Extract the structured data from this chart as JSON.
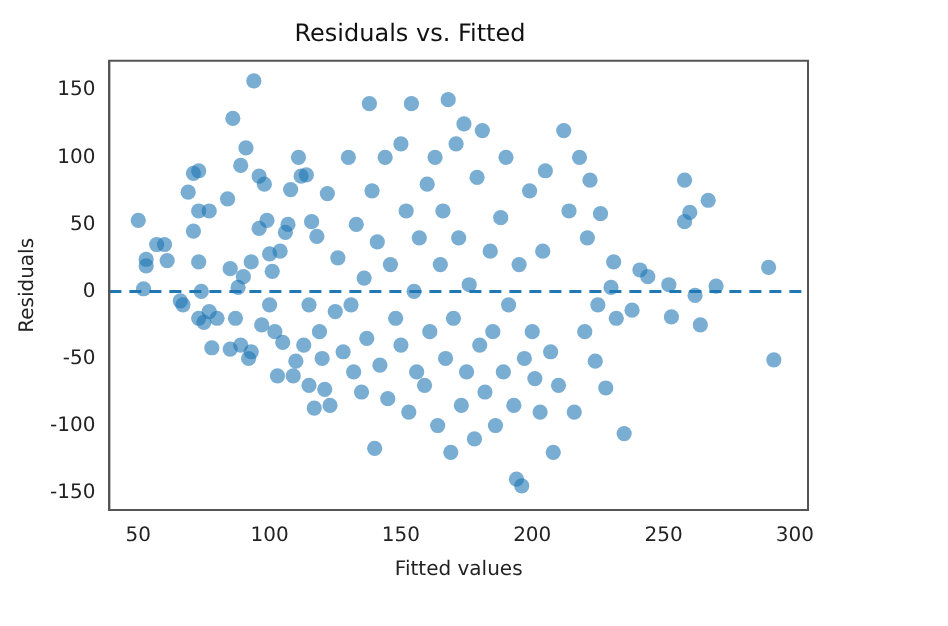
{
  "chart_data": {
    "type": "scatter",
    "title": "Residuals vs. Fitted",
    "xlabel": "Fitted values",
    "ylabel": "Residuals",
    "xlim": [
      39,
      305
    ],
    "ylim": [
      -163,
      172
    ],
    "xticks": [
      50,
      100,
      150,
      200,
      250,
      300
    ],
    "yticks": [
      -150,
      -100,
      -50,
      0,
      50,
      100,
      150
    ],
    "grid": false,
    "legend": false,
    "marker": "circle",
    "ref_lines": [
      {
        "axis": "y",
        "value": 0,
        "color": "#1f77b4",
        "line_style": "dashed"
      }
    ],
    "series": [
      {
        "color": "#1f77b4",
        "x": [
          50,
          52,
          53,
          53,
          57,
          60,
          61,
          66,
          67,
          69,
          71,
          71,
          73,
          73,
          73,
          73,
          74,
          75,
          77,
          77,
          78,
          80,
          84,
          85,
          85,
          86,
          87,
          88,
          89,
          89,
          90,
          91,
          92,
          93,
          93,
          94,
          96,
          96,
          97,
          98,
          99,
          100,
          100,
          101,
          102,
          103,
          104,
          105,
          106,
          107,
          108,
          109,
          110,
          111,
          112,
          113,
          114,
          115,
          115,
          116,
          117,
          118,
          119,
          120,
          121,
          122,
          123,
          125,
          126,
          128,
          130,
          131,
          132,
          133,
          135,
          136,
          137,
          138,
          139,
          140,
          141,
          142,
          144,
          145,
          146,
          148,
          150,
          150,
          152,
          153,
          154,
          155,
          156,
          157,
          159,
          160,
          161,
          163,
          164,
          165,
          166,
          167,
          168,
          169,
          170,
          171,
          172,
          173,
          174,
          175,
          176,
          178,
          179,
          180,
          181,
          182,
          184,
          185,
          186,
          188,
          189,
          190,
          191,
          193,
          194,
          195,
          196,
          197,
          199,
          200,
          201,
          203,
          204,
          205,
          207,
          208,
          210,
          212,
          214,
          216,
          218,
          220,
          221,
          222,
          224,
          225,
          226,
          228,
          230,
          231,
          232,
          235,
          238,
          241,
          244,
          252,
          253,
          258,
          258,
          260,
          262,
          264,
          267,
          270,
          290,
          292
        ],
        "values": [
          53,
          2,
          24,
          19,
          35,
          35,
          23,
          -7,
          -10,
          74,
          88,
          45,
          90,
          60,
          22,
          -20,
          0,
          -23,
          60,
          -15,
          -42,
          -20,
          69,
          17,
          -43,
          129,
          -20,
          3,
          94,
          -40,
          11,
          107,
          -50,
          -45,
          22,
          157,
          47,
          86,
          -25,
          80,
          53,
          -10,
          28,
          15,
          -30,
          -63,
          30,
          -38,
          44,
          50,
          76,
          -63,
          -52,
          100,
          86,
          -40,
          87,
          -10,
          -70,
          52,
          -87,
          41,
          -30,
          -50,
          -73,
          73,
          -85,
          -15,
          25,
          -45,
          100,
          -10,
          -60,
          50,
          -75,
          10,
          -35,
          140,
          75,
          -117,
          37,
          -55,
          100,
          -80,
          20,
          -20,
          110,
          -40,
          60,
          -90,
          140,
          0,
          -60,
          40,
          -70,
          80,
          -30,
          100,
          -100,
          20,
          60,
          -50,
          143,
          -120,
          -20,
          110,
          40,
          -85,
          125,
          -60,
          5,
          -110,
          85,
          -40,
          120,
          -75,
          30,
          -30,
          -100,
          55,
          -60,
          100,
          -10,
          -85,
          -140,
          20,
          -145,
          -50,
          75,
          -30,
          -65,
          -90,
          30,
          90,
          -45,
          -120,
          -70,
          120,
          60,
          -90,
          100,
          -30,
          40,
          83,
          -52,
          -10,
          58,
          -72,
          3,
          22,
          -20,
          -106,
          -14,
          16,
          11,
          5,
          -19,
          52,
          83,
          59,
          -3,
          -25,
          68,
          4,
          18,
          -51
        ]
      }
    ]
  }
}
